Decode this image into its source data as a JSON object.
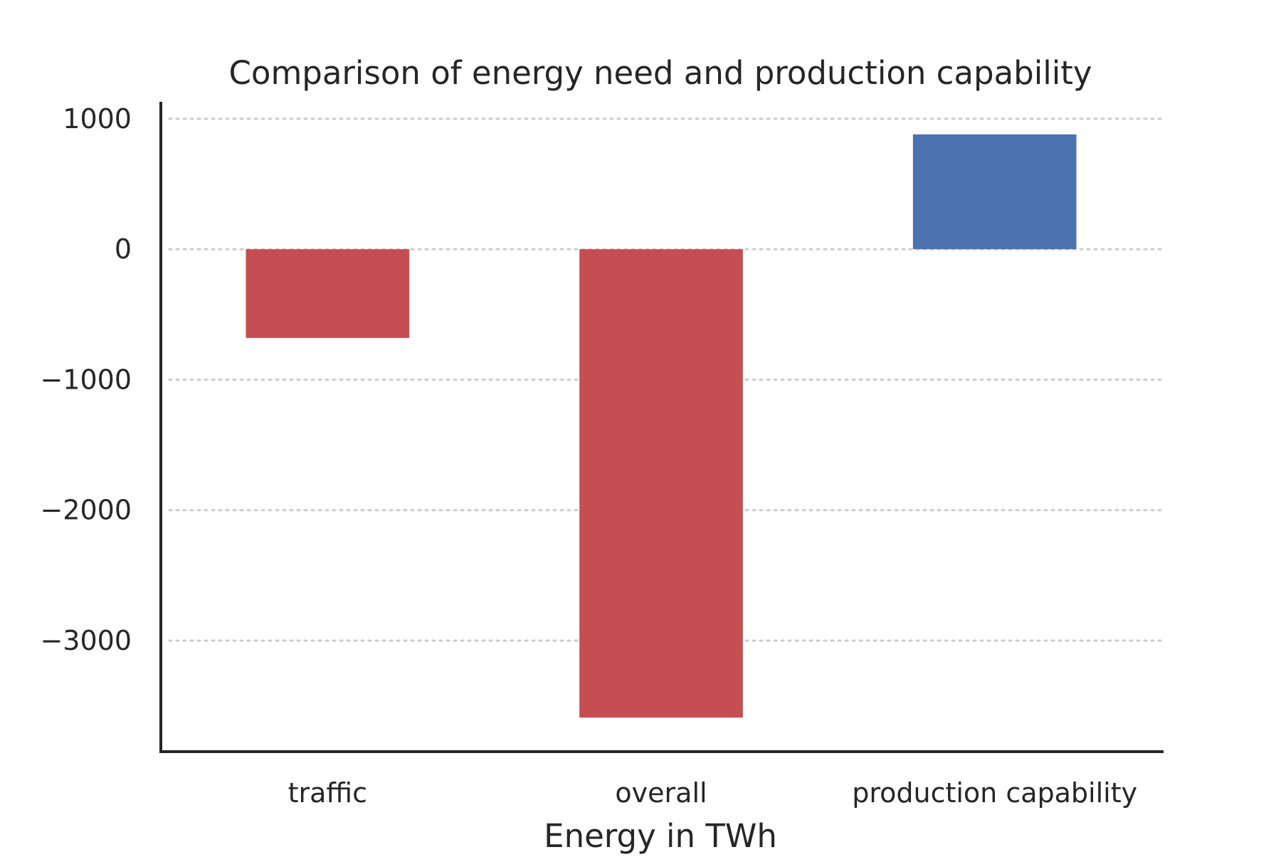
{
  "chart_data": {
    "type": "bar",
    "title": "Comparison of energy need and production capability",
    "xlabel": "Energy in TWh",
    "ylabel": "",
    "categories": [
      "traffic",
      "overall",
      "production capability"
    ],
    "values": [
      -680,
      -3590,
      880
    ],
    "bar_colors": [
      "#c44e52",
      "#c44e52",
      "#4c72b0"
    ],
    "ylim": [
      -3840,
      1130
    ],
    "yticks": [
      1000,
      0,
      -1000,
      -2000,
      -3000
    ],
    "ytick_labels": [
      "1000",
      "0",
      "−1000",
      "−2000",
      "−3000"
    ],
    "grid": "horizontal dotted",
    "legend": "none"
  }
}
